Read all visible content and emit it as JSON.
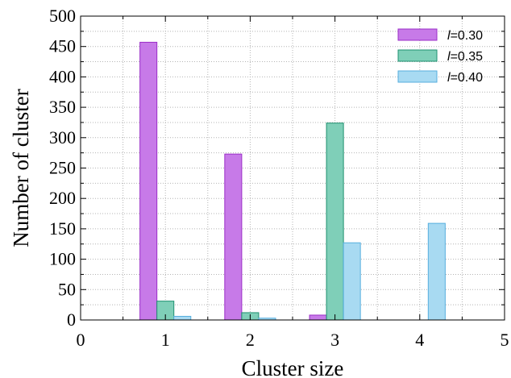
{
  "chart_data": {
    "type": "bar",
    "title": "",
    "xlabel": "Cluster size",
    "ylabel": "Number of cluster",
    "xlim": [
      0,
      5
    ],
    "ylim": [
      0,
      500
    ],
    "xticks": [
      "0",
      "1",
      "2",
      "3",
      "4",
      "5"
    ],
    "yticks": [
      "0",
      "50",
      "100",
      "150",
      "200",
      "250",
      "300",
      "350",
      "400",
      "450",
      "500"
    ],
    "grid": true,
    "legend_position": "top-right",
    "categories": [
      1,
      2,
      3,
      4
    ],
    "series": [
      {
        "name_prefix": "l",
        "name_value": "=0.30",
        "values": [
          457,
          273,
          8,
          0
        ],
        "fill": "#c77ae8",
        "stroke": "#9b2dc8"
      },
      {
        "name_prefix": "l",
        "name_value": "=0.35",
        "values": [
          31,
          12,
          324,
          0
        ],
        "fill": "#7fcfb8",
        "stroke": "#1e9070"
      },
      {
        "name_prefix": "l",
        "name_value": "=0.40",
        "values": [
          6,
          3,
          127,
          159
        ],
        "fill": "#a8daf2",
        "stroke": "#56aede"
      }
    ]
  }
}
